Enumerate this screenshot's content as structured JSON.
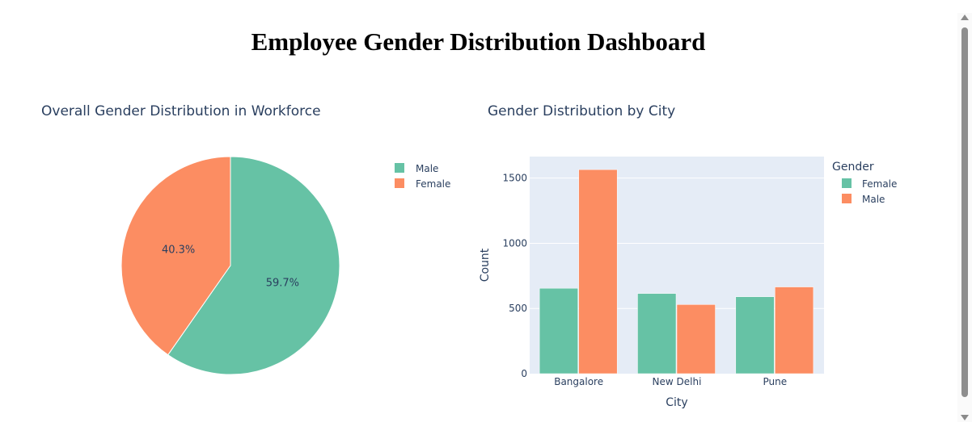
{
  "page": {
    "title": "Employee Gender Distribution Dashboard"
  },
  "colors": {
    "teal": "#66c2a5",
    "orange": "#fc8d62",
    "plot_bg": "#e5ecf6"
  },
  "chart_data": [
    {
      "type": "pie",
      "title": "Overall Gender Distribution in Workforce",
      "labels": [
        "Male",
        "Female"
      ],
      "values": [
        59.7,
        40.3
      ],
      "value_labels": [
        "59.7%",
        "40.3%"
      ],
      "colors": [
        "#66c2a5",
        "#fc8d62"
      ],
      "legend": {
        "position": "top-right",
        "items": [
          "Male",
          "Female"
        ]
      }
    },
    {
      "type": "bar",
      "title": "Gender Distribution by City",
      "xlabel": "City",
      "ylabel": "Count",
      "categories": [
        "Bangalore",
        "New Delhi",
        "Pune"
      ],
      "series": [
        {
          "name": "Female",
          "values": [
            655,
            615,
            590
          ],
          "color": "#66c2a5"
        },
        {
          "name": "Male",
          "values": [
            1565,
            530,
            665
          ],
          "color": "#fc8d62"
        }
      ],
      "ylim": [
        0,
        1665
      ],
      "yticks": [
        0,
        500,
        1000,
        1500
      ],
      "grid": true,
      "legend": {
        "title": "Gender",
        "position": "top-right",
        "items": [
          "Female",
          "Male"
        ]
      }
    }
  ]
}
